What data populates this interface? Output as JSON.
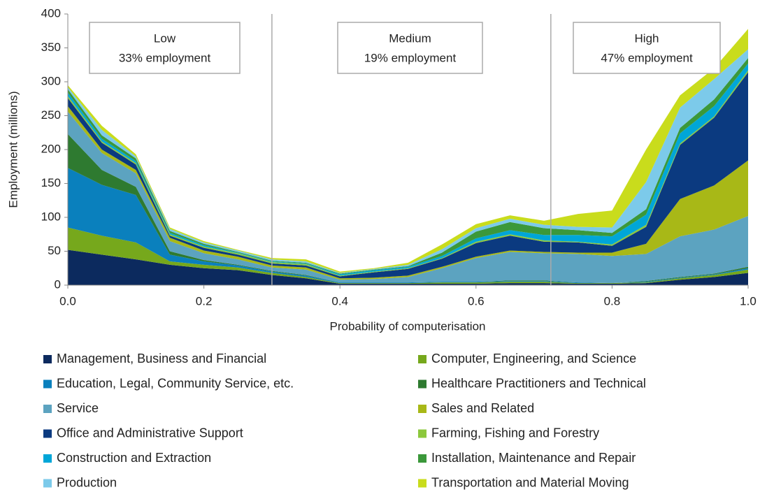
{
  "chart_data": {
    "type": "stacked_area",
    "x_label": "Probability of computerisation",
    "y_label": "Employment (millions)",
    "xlim": [
      0,
      1
    ],
    "xticks": [
      {
        "value": 0,
        "label": "0.0"
      },
      0.2,
      0.4,
      0.6,
      0.8,
      {
        "value": 1,
        "label": "1.0"
      }
    ],
    "ylim": [
      0,
      400
    ],
    "yticks": [
      0,
      50,
      100,
      150,
      200,
      250,
      300,
      350,
      400
    ],
    "thresholds": [
      0.3,
      0.71
    ],
    "annotations": [
      {
        "title": "Low",
        "text": "33% employment"
      },
      {
        "title": "Medium",
        "text": "19% employment"
      },
      {
        "title": "High",
        "text": "47% employment"
      }
    ],
    "x": [
      0,
      0.05,
      0.1,
      0.15,
      0.2,
      0.25,
      0.3,
      0.35,
      0.4,
      0.45,
      0.5,
      0.55,
      0.6,
      0.65,
      0.7,
      0.75,
      0.8,
      0.85,
      0.9,
      0.95,
      1
    ],
    "series": [
      {
        "name": "Management, Business and Financial",
        "color": "#0c2a5e",
        "values": [
          52,
          45,
          38,
          30,
          25,
          22,
          15,
          10,
          2,
          2,
          2,
          2,
          2,
          3,
          3,
          2,
          2,
          3,
          8,
          12,
          18
        ]
      },
      {
        "name": "Computer, Engineering, and Science",
        "color": "#76a81c",
        "values": [
          33,
          28,
          25,
          5,
          5,
          4,
          3,
          2,
          1,
          1,
          1,
          2,
          2,
          2,
          2,
          1,
          1,
          1,
          2,
          3,
          5
        ]
      },
      {
        "name": "Education, Legal, Community Service, etc.",
        "color": "#0a80bd",
        "values": [
          88,
          75,
          70,
          10,
          5,
          3,
          2,
          2,
          1,
          1,
          1,
          1,
          1,
          1,
          1,
          1,
          0,
          1,
          1,
          1,
          2
        ]
      },
      {
        "name": "Healthcare Practitioners and Technical",
        "color": "#2e7a30",
        "values": [
          50,
          22,
          12,
          5,
          2,
          1,
          1,
          1,
          0,
          0,
          0,
          0,
          0,
          1,
          1,
          0,
          0,
          1,
          1,
          1,
          2
        ]
      },
      {
        "name": "Service",
        "color": "#5ca3c0",
        "values": [
          33,
          25,
          20,
          15,
          10,
          8,
          5,
          8,
          4,
          5,
          8,
          20,
          35,
          42,
          40,
          42,
          40,
          40,
          60,
          65,
          75
        ]
      },
      {
        "name": "Sales and Related",
        "color": "#a8b817",
        "values": [
          8,
          5,
          5,
          5,
          4,
          4,
          3,
          3,
          2,
          2,
          2,
          2,
          2,
          2,
          2,
          2,
          5,
          15,
          55,
          65,
          82
        ]
      },
      {
        "name": "Office and Administrative Support",
        "color": "#0b3a80",
        "values": [
          12,
          10,
          8,
          3,
          4,
          3,
          3,
          3,
          3,
          8,
          10,
          12,
          20,
          22,
          15,
          15,
          10,
          25,
          80,
          100,
          130
        ]
      },
      {
        "name": "Farming, Fishing and Forestry",
        "color": "#8cc83c",
        "values": [
          3,
          2,
          2,
          2,
          2,
          2,
          2,
          2,
          1,
          1,
          1,
          1,
          2,
          2,
          2,
          1,
          2,
          3,
          2,
          2,
          3
        ]
      },
      {
        "name": "Construction and Extraction",
        "color": "#00a6d8",
        "values": [
          5,
          4,
          3,
          2,
          2,
          1,
          1,
          1,
          2,
          2,
          2,
          3,
          5,
          6,
          8,
          10,
          12,
          15,
          15,
          15,
          10
        ]
      },
      {
        "name": "Installation, Maintenance and Repair",
        "color": "#3b983a",
        "values": [
          5,
          5,
          4,
          3,
          2,
          1,
          1,
          1,
          1,
          1,
          1,
          5,
          10,
          12,
          10,
          7,
          5,
          8,
          8,
          10,
          8
        ]
      },
      {
        "name": "Production",
        "color": "#7ccaea",
        "values": [
          3,
          8,
          3,
          3,
          2,
          2,
          2,
          2,
          1,
          1,
          2,
          5,
          5,
          5,
          5,
          5,
          8,
          40,
          30,
          30,
          13
        ]
      },
      {
        "name": "Transportation and Material Moving",
        "color": "#c9dc1c",
        "values": [
          3,
          6,
          3,
          2,
          2,
          1,
          2,
          3,
          2,
          1,
          3,
          7,
          6,
          5,
          6,
          19,
          25,
          48,
          18,
          16,
          30
        ]
      }
    ]
  }
}
